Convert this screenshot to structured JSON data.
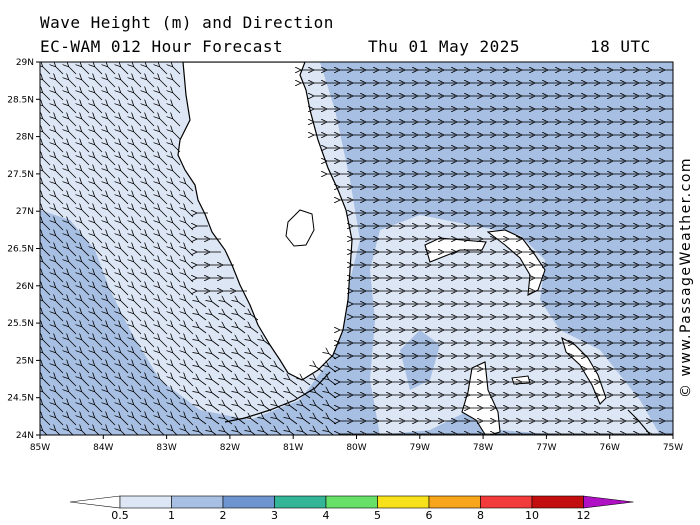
{
  "title": {
    "line1": "Wave Height (m) and Direction",
    "line2_model": "EC-WAM 012 Hour Forecast",
    "line2_date": "Thu 01 May 2025",
    "line2_time": "18 UTC"
  },
  "copyright": "© www.PassageWeather.com",
  "axes": {
    "x_labels": [
      "85W",
      "84W",
      "83W",
      "82W",
      "81W",
      "80W",
      "79W",
      "78W",
      "77W",
      "76W",
      "75W"
    ],
    "y_labels": [
      "29N",
      "28.5N",
      "28N",
      "27.5N",
      "27N",
      "26.5N",
      "26N",
      "25.5N",
      "25N",
      "24.5N",
      "24N"
    ]
  },
  "colorbar": {
    "labels": [
      "0.5",
      "1",
      "2",
      "3",
      "4",
      "5",
      "6",
      "8",
      "10",
      "12"
    ],
    "colors": [
      "#dde6f4",
      "#a7bfe2",
      "#6f95d0",
      "#35b597",
      "#66e066",
      "#f7e11a",
      "#f7a51a",
      "#f23c3c",
      "#c20e0e",
      "#b010c4"
    ]
  },
  "colors": {
    "land": "#ffffff",
    "sea_low": "#dde6f4",
    "sea_mid": "#a7bfe2",
    "coast": "#000000"
  },
  "wave_direction": "Easterly waves west of Florida's east coast",
  "icons": {
    "arrow": "wave-direction-arrow"
  }
}
